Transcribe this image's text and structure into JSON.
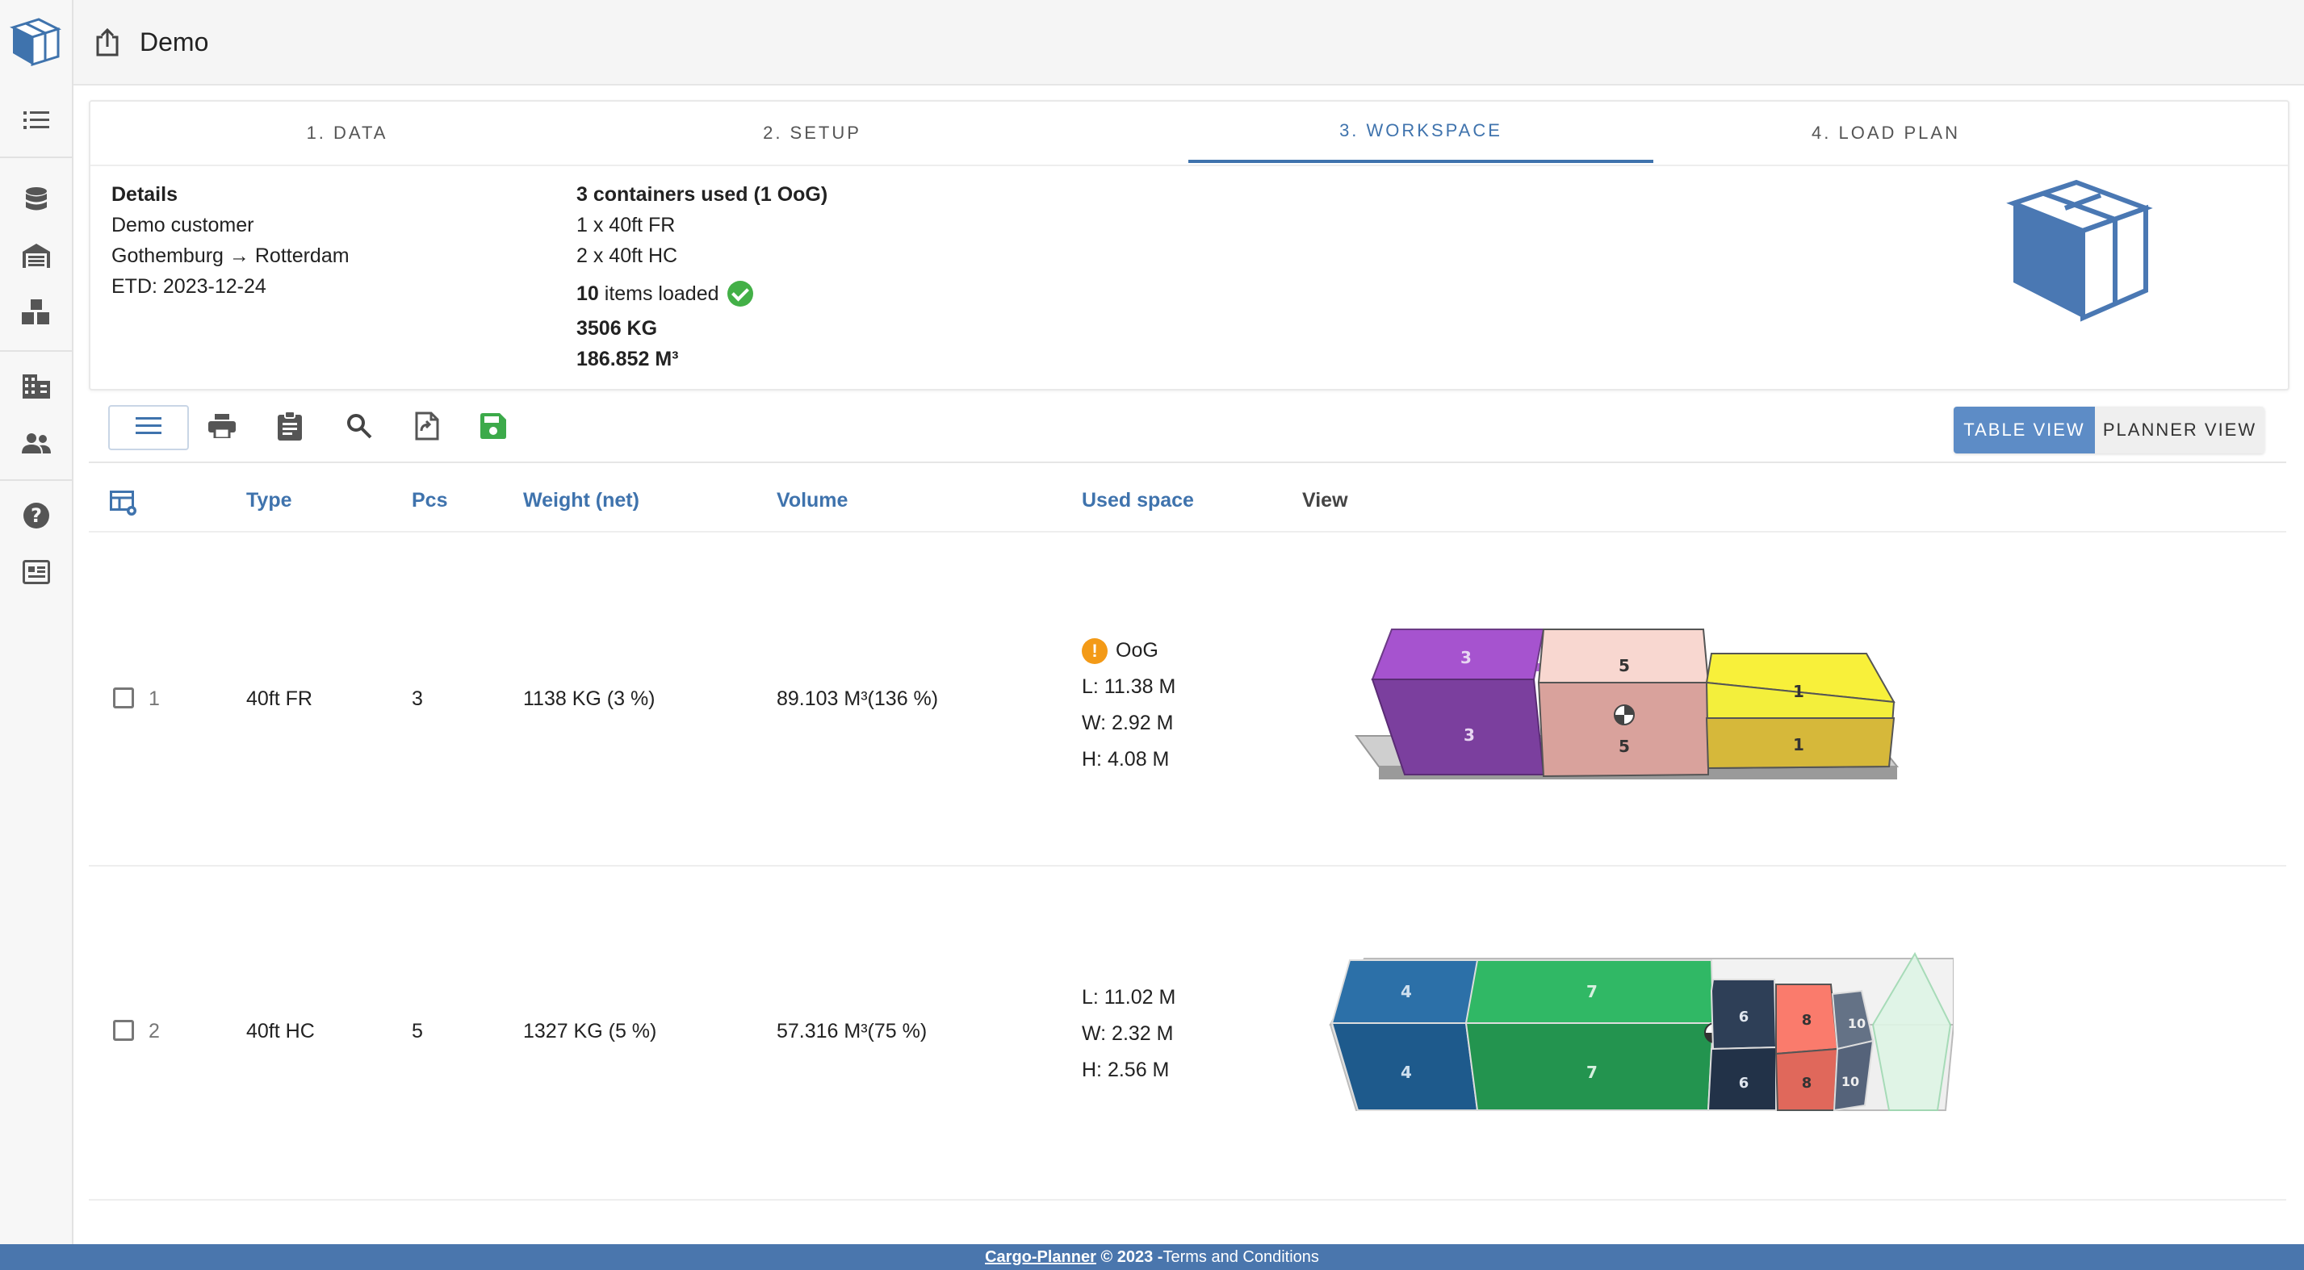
{
  "app": {
    "title": "Demo"
  },
  "tabs": [
    {
      "label": "1. DATA"
    },
    {
      "label": "2. SETUP"
    },
    {
      "label": "3. WORKSPACE"
    },
    {
      "label": "4. LOAD PLAN"
    }
  ],
  "details": {
    "heading": "Details",
    "customer": "Demo customer",
    "route": "Gothemburg → Rotterdam",
    "etd": "ETD: 2023-12-24"
  },
  "summary": {
    "containers_used": "3 containers used (1 OoG)",
    "line1": "1 x 40ft FR",
    "line2": "2 x 40ft HC",
    "items_count": "10",
    "items_label": " items loaded",
    "weight": "3506 KG",
    "volume": "186.852 M³"
  },
  "toolbar": {
    "icons": [
      "menu-icon",
      "print-icon",
      "clipboard-icon",
      "search-icon",
      "file-export-icon",
      "save-icon"
    ],
    "table_view": "TABLE VIEW",
    "planner_view": "PLANNER VIEW"
  },
  "table": {
    "headers": {
      "type": "Type",
      "pcs": "Pcs",
      "weight": "Weight (net)",
      "volume": "Volume",
      "used_space": "Used space",
      "view": "View"
    },
    "rows": [
      {
        "index": "1",
        "type": "40ft FR",
        "pcs": "3",
        "weight": "1138 KG (3 %)",
        "volume": "89.103 M³(136 %)",
        "oog": "OoG",
        "length": "L: 11.38 M",
        "width": "W: 2.92 M",
        "height": "H: 4.08 M"
      },
      {
        "index": "2",
        "type": "40ft HC",
        "pcs": "5",
        "weight": "1327 KG (5 %)",
        "volume": "57.316 M³(75 %)",
        "length": "L: 11.02 M",
        "width": "W: 2.32 M",
        "height": "H: 2.56 M"
      }
    ]
  },
  "footer": {
    "brand": "Cargo-Planner",
    "copyright": " © 2023 -",
    "terms": "Terms and Conditions"
  },
  "colors": {
    "accent": "#3f73ad",
    "footer": "#4a76ad",
    "success": "#43b047",
    "warning": "#f39a17"
  }
}
